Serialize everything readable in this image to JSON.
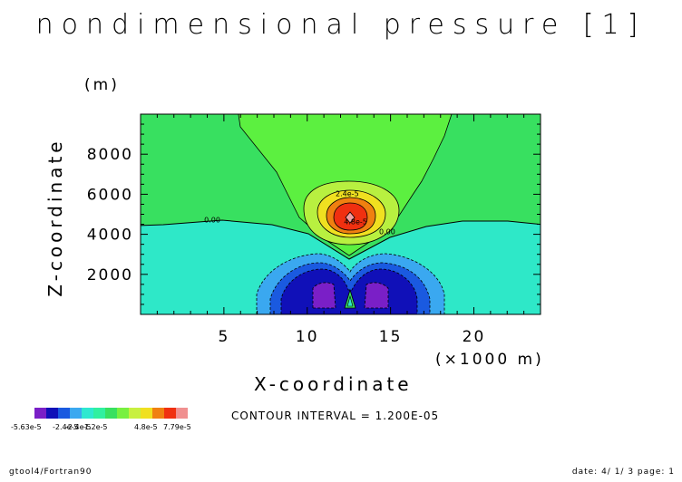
{
  "chart_data": {
    "type": "heatmap",
    "title": "nondimensional pressure [1]",
    "ylabel": "Z-coordinate",
    "yunit": "(m)",
    "xlabel": "X-coordinate",
    "xunit": "(×1000 m)",
    "xlim": [
      0,
      24
    ],
    "ylim": [
      0,
      10000
    ],
    "x_ticks": [
      5,
      10,
      15,
      20
    ],
    "y_ticks": [
      2000,
      4000,
      6000,
      8000
    ],
    "contour_labels": [
      {
        "text": "2.4e-5",
        "x": 12.4,
        "z": 5900
      },
      {
        "text": "4.8e-5",
        "x": 12.9,
        "z": 4500
      },
      {
        "text": "0.00",
        "x": 4.3,
        "z": 4600
      },
      {
        "text": "0.00",
        "x": 14.8,
        "z": 4000
      }
    ],
    "contour_interval": "CONTOUR INTERVAL = 1.200E-05",
    "colorbar": {
      "colors": [
        "#7a1fc7",
        "#1010b8",
        "#1a5ae0",
        "#3aa8f0",
        "#2ee8d0",
        "#30f0a0",
        "#38e060",
        "#78f040",
        "#c8f040",
        "#f0e020",
        "#f08010",
        "#f03010",
        "#f09090"
      ],
      "labels": [
        "-5.63e-5",
        "-2.4e-5",
        "-2.4e-5",
        "-1.2e-5",
        "4.8e-5",
        "7.79e-5"
      ]
    }
  },
  "footer": {
    "left": "gtool4/Fortran90",
    "right": "date: 4/ 1/ 3 page: 1"
  }
}
